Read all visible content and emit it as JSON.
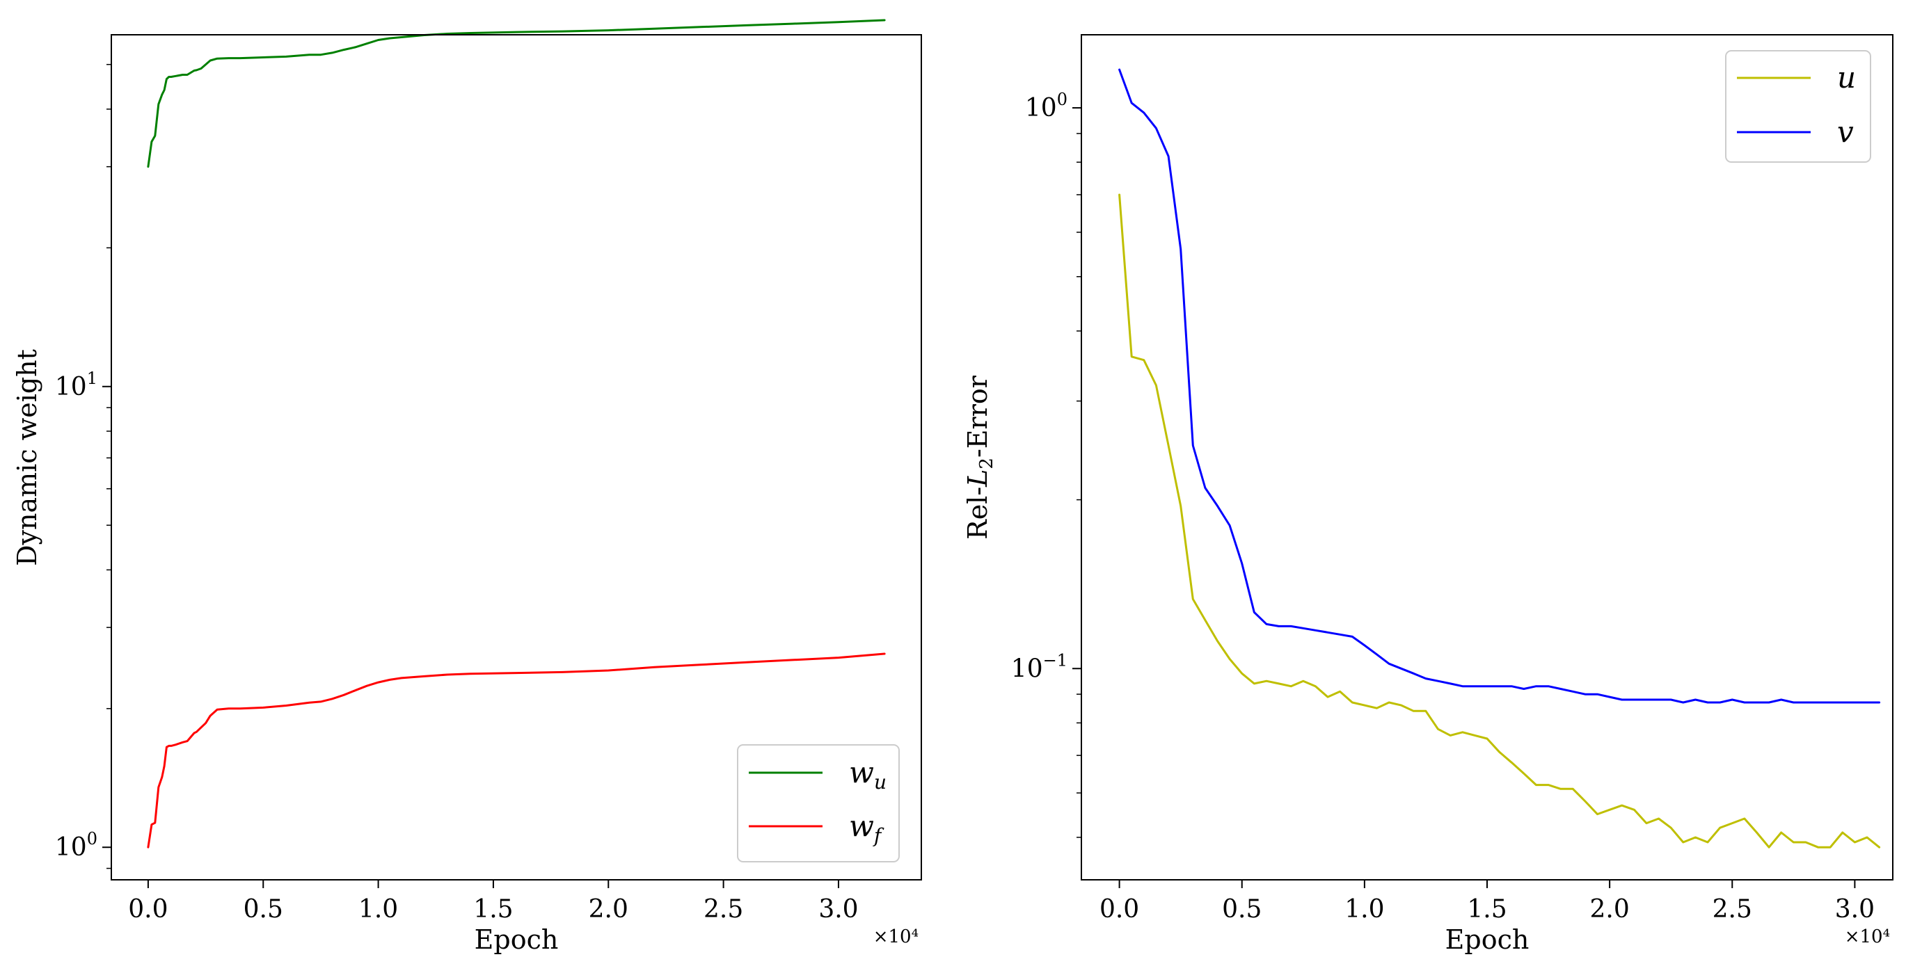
{
  "figure": {
    "background": "#ffffff"
  },
  "chart_data": [
    {
      "type": "line",
      "title": "",
      "xlabel": "Epoch",
      "ylabel": "Dynamic weight",
      "x_offset_label": "×10⁴",
      "yscale": "log",
      "ylim": [
        0.85,
        58
      ],
      "xlim": [
        -1600,
        33600
      ],
      "xticks": [
        0,
        5000,
        10000,
        15000,
        20000,
        25000,
        30000
      ],
      "xtick_labels": [
        "0.0",
        "0.5",
        "1.0",
        "1.5",
        "2.0",
        "2.5",
        "3.0"
      ],
      "yticks_major": [
        {
          "value": 1,
          "base": "10",
          "exp": "0"
        },
        {
          "value": 10,
          "base": "10",
          "exp": "1"
        }
      ],
      "grid": false,
      "legend_position": "lower right",
      "series": [
        {
          "name": "w_u",
          "legend_main": "w",
          "legend_sub": "u",
          "color": "#008000",
          "x": [
            0,
            150,
            300,
            450,
            600,
            700,
            800,
            900,
            1000,
            1200,
            1500,
            1700,
            2000,
            2100,
            2300,
            2500,
            2700,
            3000,
            3500,
            4000,
            5000,
            6000,
            7000,
            7500,
            8000,
            8500,
            9000,
            9500,
            10000,
            10500,
            11000,
            12000,
            13000,
            14000,
            16000,
            18000,
            20000,
            22000,
            24000,
            26000,
            28000,
            30000,
            32000
          ],
          "y": [
            30,
            34,
            35,
            41,
            43,
            44,
            46.5,
            47,
            47,
            47.2,
            47.5,
            47.5,
            48.5,
            48.6,
            49,
            50,
            51,
            51.5,
            51.6,
            51.6,
            51.8,
            52,
            52.5,
            52.5,
            53,
            53.8,
            54.5,
            55.5,
            56.5,
            57,
            57.3,
            57.9,
            58.3,
            58.5,
            58.8,
            59,
            59.3,
            59.8,
            60.3,
            60.8,
            61.3,
            61.8,
            62.4
          ]
        },
        {
          "name": "w_f",
          "legend_main": "w",
          "legend_sub": "f",
          "color": "#ff0000",
          "x": [
            0,
            150,
            300,
            450,
            600,
            700,
            800,
            900,
            1000,
            1200,
            1500,
            1700,
            2000,
            2100,
            2300,
            2500,
            2700,
            3000,
            3500,
            4000,
            5000,
            6000,
            7000,
            7500,
            8000,
            8500,
            9000,
            9500,
            10000,
            10500,
            11000,
            12000,
            13000,
            14000,
            16000,
            18000,
            20000,
            22000,
            24000,
            26000,
            28000,
            30000,
            32000
          ],
          "y": [
            1.0,
            1.12,
            1.13,
            1.35,
            1.42,
            1.5,
            1.65,
            1.66,
            1.66,
            1.67,
            1.69,
            1.7,
            1.77,
            1.78,
            1.82,
            1.86,
            1.93,
            1.99,
            2.0,
            2.0,
            2.01,
            2.03,
            2.06,
            2.07,
            2.1,
            2.14,
            2.19,
            2.24,
            2.28,
            2.31,
            2.33,
            2.35,
            2.37,
            2.38,
            2.39,
            2.4,
            2.42,
            2.46,
            2.49,
            2.52,
            2.55,
            2.58,
            2.63
          ]
        }
      ]
    },
    {
      "type": "line",
      "title": "",
      "xlabel": "Epoch",
      "ylabel": "Rel-L₂-Error",
      "ylabel_main": "Rel-",
      "ylabel_italic": "L",
      "ylabel_sub": "2",
      "ylabel_tail": "-Error",
      "x_offset_label": "×10⁴",
      "yscale": "log",
      "ylim": [
        0.042,
        1.35
      ],
      "xlim": [
        -1550,
        31550
      ],
      "xticks": [
        0,
        5000,
        10000,
        15000,
        20000,
        25000,
        30000
      ],
      "xtick_labels": [
        "0.0",
        "0.5",
        "1.0",
        "1.5",
        "2.0",
        "2.5",
        "3.0"
      ],
      "yticks_major": [
        {
          "value": 0.1,
          "base": "10",
          "exp": "−1"
        },
        {
          "value": 1,
          "base": "10",
          "exp": "0"
        }
      ],
      "grid": false,
      "legend_position": "upper right",
      "series": [
        {
          "name": "u",
          "legend_main": "u",
          "legend_sub": "",
          "color": "#bfbf00",
          "x": [
            0,
            500,
            1000,
            1500,
            2000,
            2500,
            3000,
            3500,
            4000,
            4500,
            5000,
            5500,
            6000,
            6500,
            7000,
            7500,
            8000,
            8500,
            9000,
            9500,
            10000,
            10500,
            11000,
            11500,
            12000,
            12500,
            13000,
            13500,
            14000,
            14500,
            15000,
            15500,
            16000,
            16500,
            17000,
            17500,
            18000,
            18500,
            19000,
            19500,
            20000,
            20500,
            21000,
            21500,
            22000,
            22500,
            23000,
            23500,
            24000,
            24500,
            25000,
            25500,
            26000,
            26500,
            27000,
            27500,
            28000,
            28500,
            29000,
            29500,
            30000,
            30500,
            31000
          ],
          "y": [
            0.7,
            0.36,
            0.355,
            0.32,
            0.25,
            0.195,
            0.133,
            0.122,
            0.112,
            0.104,
            0.098,
            0.094,
            0.095,
            0.094,
            0.093,
            0.095,
            0.093,
            0.089,
            0.091,
            0.087,
            0.086,
            0.085,
            0.087,
            0.086,
            0.084,
            0.084,
            0.078,
            0.076,
            0.077,
            0.076,
            0.075,
            0.071,
            0.068,
            0.065,
            0.062,
            0.062,
            0.061,
            0.061,
            0.058,
            0.055,
            0.056,
            0.057,
            0.056,
            0.053,
            0.054,
            0.052,
            0.049,
            0.05,
            0.049,
            0.052,
            0.053,
            0.054,
            0.051,
            0.048,
            0.051,
            0.049,
            0.049,
            0.048,
            0.048,
            0.051,
            0.049,
            0.05,
            0.048
          ]
        },
        {
          "name": "v",
          "legend_main": "v",
          "legend_sub": "",
          "color": "#0000ff",
          "x": [
            0,
            500,
            1000,
            1500,
            2000,
            2500,
            3000,
            3500,
            4000,
            4500,
            5000,
            5500,
            6000,
            6500,
            7000,
            7500,
            8000,
            8500,
            9000,
            9500,
            10000,
            10500,
            11000,
            11500,
            12000,
            12500,
            13000,
            13500,
            14000,
            14500,
            15000,
            15500,
            16000,
            16500,
            17000,
            17500,
            18000,
            18500,
            19000,
            19500,
            20000,
            20500,
            21000,
            21500,
            22000,
            22500,
            23000,
            23500,
            24000,
            24500,
            25000,
            25500,
            26000,
            26500,
            27000,
            27500,
            28000,
            28500,
            29000,
            29500,
            30000,
            30500,
            31000
          ],
          "y": [
            1.17,
            1.02,
            0.98,
            0.92,
            0.82,
            0.56,
            0.25,
            0.21,
            0.195,
            0.18,
            0.154,
            0.126,
            0.12,
            0.119,
            0.119,
            0.118,
            0.117,
            0.116,
            0.115,
            0.114,
            0.11,
            0.106,
            0.102,
            0.1,
            0.098,
            0.096,
            0.095,
            0.094,
            0.093,
            0.093,
            0.093,
            0.093,
            0.093,
            0.092,
            0.093,
            0.093,
            0.092,
            0.091,
            0.09,
            0.09,
            0.089,
            0.088,
            0.088,
            0.088,
            0.088,
            0.088,
            0.087,
            0.088,
            0.087,
            0.087,
            0.088,
            0.087,
            0.087,
            0.087,
            0.088,
            0.087,
            0.087,
            0.087,
            0.087,
            0.087,
            0.087,
            0.087,
            0.087
          ]
        }
      ]
    }
  ]
}
